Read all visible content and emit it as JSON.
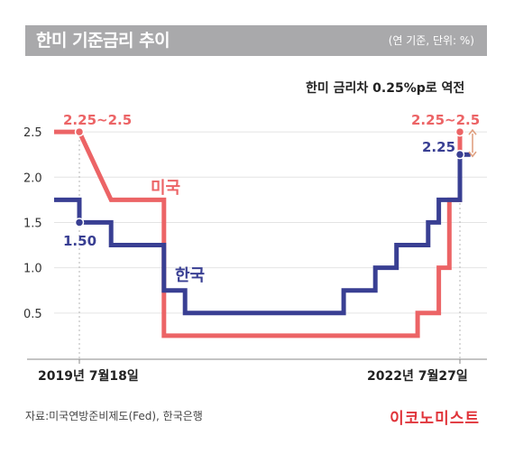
{
  "header": {
    "title": "한미 기준금리 추이",
    "unit": "(연 기준, 단위: %)"
  },
  "chart_data": {
    "type": "line",
    "step": true,
    "annotation": "한미 금리차 0.25%p로 역전",
    "y_ticks": [
      "2.5",
      "2.0",
      "1.5",
      "1.0",
      "0.5"
    ],
    "ylim": [
      0,
      2.7
    ],
    "x_labels": [
      "2019년 7월18일",
      "2022년 7월27일"
    ],
    "grid": "horizontal",
    "series": [
      {
        "name": "미국",
        "color": "#ec6466",
        "points": [
          [
            "2019-06",
            2.5
          ],
          [
            "2019-07",
            2.5
          ],
          [
            "2019-08",
            2.25
          ],
          [
            "2019-09",
            2.0
          ],
          [
            "2019-10",
            1.75
          ],
          [
            "2020-03",
            1.75
          ],
          [
            "2020-03",
            0.25
          ],
          [
            "2022-03",
            0.25
          ],
          [
            "2022-03",
            0.5
          ],
          [
            "2022-05",
            0.5
          ],
          [
            "2022-05",
            1.0
          ],
          [
            "2022-06",
            1.0
          ],
          [
            "2022-06",
            1.75
          ],
          [
            "2022-07",
            1.75
          ],
          [
            "2022-07",
            2.5
          ]
        ],
        "start_label": "2.25~2.5",
        "end_label": "2.25~2.5"
      },
      {
        "name": "한국",
        "color": "#393f93",
        "points": [
          [
            "2019-06",
            1.75
          ],
          [
            "2019-07",
            1.75
          ],
          [
            "2019-07",
            1.5
          ],
          [
            "2019-10",
            1.5
          ],
          [
            "2019-10",
            1.25
          ],
          [
            "2020-03",
            1.25
          ],
          [
            "2020-03",
            0.75
          ],
          [
            "2020-05",
            0.75
          ],
          [
            "2020-05",
            0.5
          ],
          [
            "2021-08",
            0.5
          ],
          [
            "2021-08",
            0.75
          ],
          [
            "2021-11",
            0.75
          ],
          [
            "2021-11",
            1.0
          ],
          [
            "2022-01",
            1.0
          ],
          [
            "2022-01",
            1.25
          ],
          [
            "2022-04",
            1.25
          ],
          [
            "2022-04",
            1.5
          ],
          [
            "2022-05",
            1.5
          ],
          [
            "2022-05",
            1.75
          ],
          [
            "2022-07",
            1.75
          ],
          [
            "2022-07",
            2.25
          ],
          [
            "2022-08",
            2.25
          ]
        ],
        "start_label": "1.50",
        "end_label": "2.25"
      }
    ]
  },
  "footer": {
    "source": "자료:미국연방준비제도(Fed), 한국은행",
    "brand": "이코노미스트"
  }
}
